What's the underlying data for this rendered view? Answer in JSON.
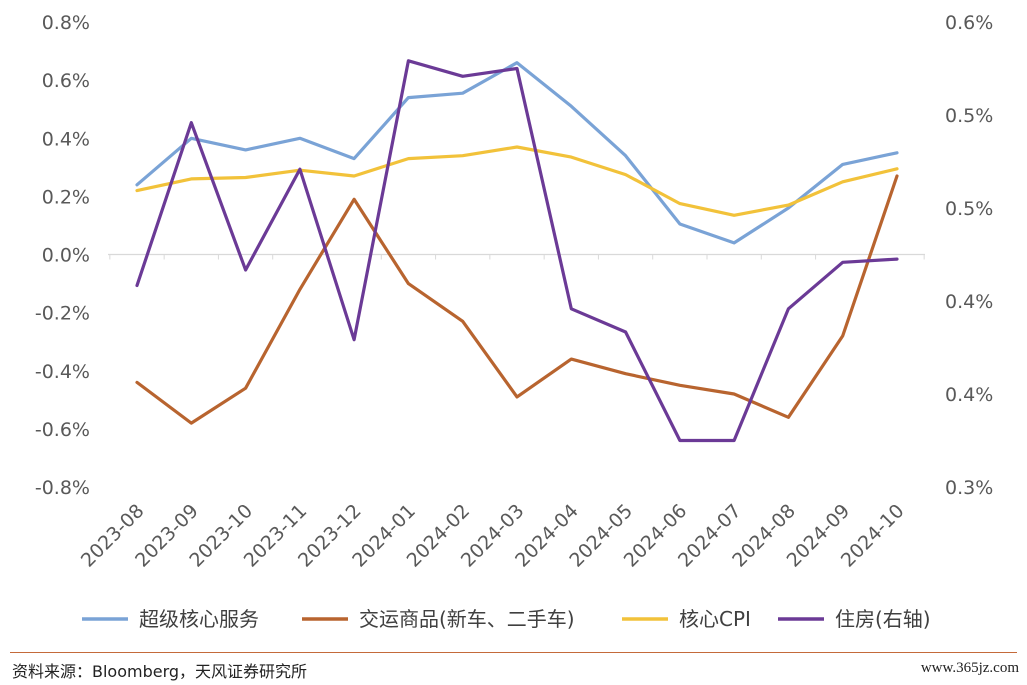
{
  "chart_data": {
    "type": "line",
    "categories": [
      "2023-08",
      "2023-09",
      "2023-10",
      "2023-11",
      "2023-12",
      "2024-01",
      "2024-02",
      "2024-03",
      "2024-04",
      "2024-05",
      "2024-06",
      "2024-07",
      "2024-08",
      "2024-09",
      "2024-10"
    ],
    "left_axis": {
      "ticks": [
        "0.8%",
        "0.6%",
        "0.4%",
        "0.2%",
        "0.0%",
        "-0.2%",
        "-0.4%",
        "-0.6%",
        "-0.8%"
      ],
      "ylim": [
        -0.8,
        0.8
      ]
    },
    "right_axis": {
      "ticks": [
        "0.6%",
        "0.5%",
        "0.5%",
        "0.4%",
        "0.4%",
        "0.3%"
      ],
      "ylim": [
        0.3,
        0.6
      ]
    },
    "series": [
      {
        "name": "超级核心服务",
        "axis": "left",
        "color": "#7aa3d6",
        "values": [
          0.24,
          0.4,
          0.36,
          0.4,
          0.33,
          0.54,
          0.555,
          0.66,
          0.51,
          0.34,
          0.105,
          0.04,
          0.16,
          0.31,
          0.35
        ]
      },
      {
        "name": "交运商品(新车、二手车)",
        "axis": "left",
        "color": "#b8642f",
        "values": [
          -0.44,
          -0.58,
          -0.46,
          -0.12,
          0.19,
          -0.1,
          -0.23,
          -0.49,
          -0.36,
          -0.41,
          -0.45,
          -0.48,
          -0.56,
          -0.28,
          0.27
        ]
      },
      {
        "name": "核心CPI",
        "axis": "left",
        "color": "#f2c23a",
        "values": [
          0.22,
          0.26,
          0.265,
          0.29,
          0.27,
          0.33,
          0.34,
          0.37,
          0.335,
          0.275,
          0.175,
          0.135,
          0.17,
          0.25,
          0.295
        ]
      },
      {
        "name": "住房(右轴)",
        "axis": "right",
        "color": "#6b3a96",
        "values": [
          0.43,
          0.535,
          0.44,
          0.505,
          0.395,
          0.575,
          0.565,
          0.57,
          0.415,
          0.4,
          0.33,
          0.33,
          0.415,
          0.445,
          0.447
        ]
      }
    ]
  },
  "footer": {
    "source": "资料来源：Bloomberg，天风证券研究所",
    "watermark": "www.365jz.com"
  }
}
